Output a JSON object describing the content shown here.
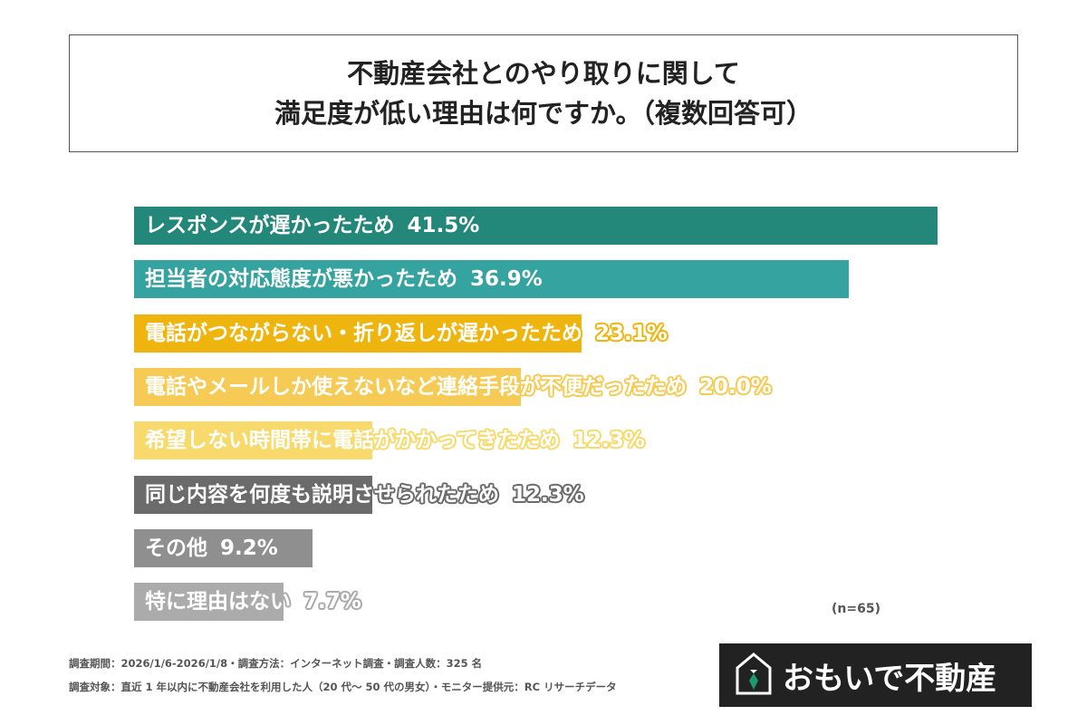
{
  "title": {
    "line1": "不動産会社とのやり取りに関して",
    "line2": "満足度が低い理由は何ですか。（複数回答可）"
  },
  "chart_data": {
    "type": "bar",
    "orientation": "horizontal",
    "categories": [
      "レスポンスが遅かったため",
      "担当者の対応態度が悪かったため",
      "電話がつながらない・折り返しが遅かったため",
      "電話やメールしか使えないなど連絡手段が不便だったため",
      "希望しない時間帯に電話がかかってきたため",
      "同じ内容を何度も説明させられたため",
      "その他",
      "特に理由はない"
    ],
    "values": [
      41.5,
      36.9,
      23.1,
      20.0,
      12.3,
      12.3,
      9.2,
      7.7
    ],
    "value_labels": [
      "41.5%",
      "36.9%",
      "23.1%",
      "20.0%",
      "12.3%",
      "12.3%",
      "9.2%",
      "7.7%"
    ],
    "colors": [
      "#23877a",
      "#35a3a0",
      "#efb50f",
      "#f5cb55",
      "#f8da6c",
      "#6b6b6b",
      "#8f8f8f",
      "#ababab"
    ],
    "unit": "%",
    "grid": false
  },
  "sample_note": "(n=65)",
  "footer": {
    "line1": "調査期間：2026/1/6-2026/1/8・調査方法：インターネット調査・調査人数：325 名",
    "line2": "調査対象：直近 1 年以内に不動産会社を利用した人（20 代～ 50 代の男女）・モニター提供元：RC リサーチデータ"
  },
  "logo": {
    "text": "おもいで不動産",
    "icon": "house-logo-icon"
  }
}
